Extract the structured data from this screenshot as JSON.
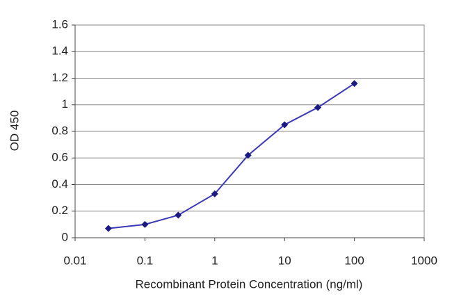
{
  "chart_data": {
    "type": "line",
    "x_label": "Recombinant Protein Concentration (ng/ml)",
    "y_label": "OD 450",
    "x": [
      0.03,
      0.1,
      0.3,
      1,
      3,
      10,
      30,
      100
    ],
    "series": [
      {
        "color": "#3a3ab8",
        "values": [
          0.07,
          0.1,
          0.17,
          0.33,
          0.62,
          0.85,
          0.98,
          1.16
        ]
      }
    ],
    "xlim": [
      0.01,
      1000
    ],
    "xticks": [
      0.01,
      0.1,
      1,
      10,
      100,
      1000
    ],
    "x_log": true,
    "ylim": [
      0,
      1.6
    ],
    "yticks": [
      0,
      0.2,
      0.4,
      0.6,
      0.8,
      1,
      1.2,
      1.4,
      1.6
    ],
    "grid": true
  }
}
